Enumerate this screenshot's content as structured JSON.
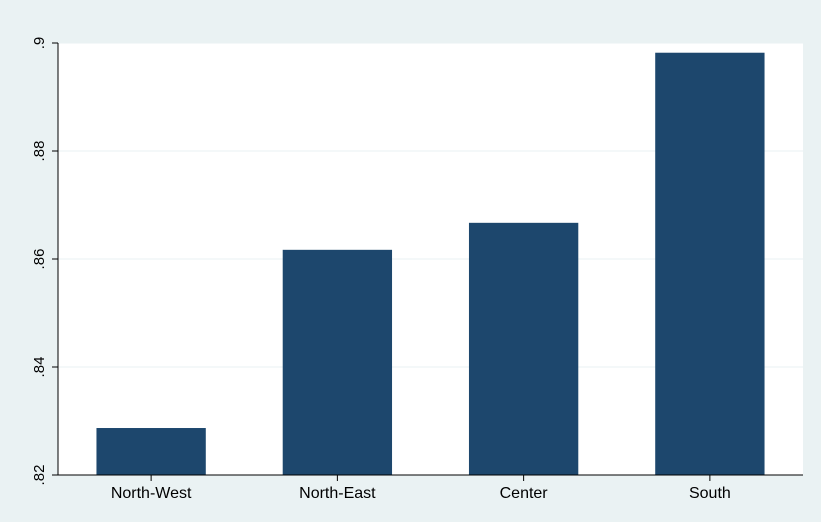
{
  "chart_data": {
    "type": "bar",
    "title": "",
    "xlabel": "",
    "ylabel": "",
    "categories": [
      "North-West",
      "North-East",
      "Center",
      "South"
    ],
    "values": [
      0.8287,
      0.8617,
      0.8667,
      0.8982
    ],
    "ylim": [
      0.82,
      0.9
    ],
    "yticks": [
      0.82,
      0.84,
      0.86,
      0.88,
      0.9
    ],
    "ytick_labels": [
      ".82",
      ".84",
      ".86",
      ".88",
      ".9"
    ],
    "grid": true,
    "legend": "none",
    "colors": {
      "bar": "#1d476d",
      "background": "#eaf2f3",
      "plot_area": "#ffffff",
      "gridline": "#eaf2f3"
    }
  }
}
